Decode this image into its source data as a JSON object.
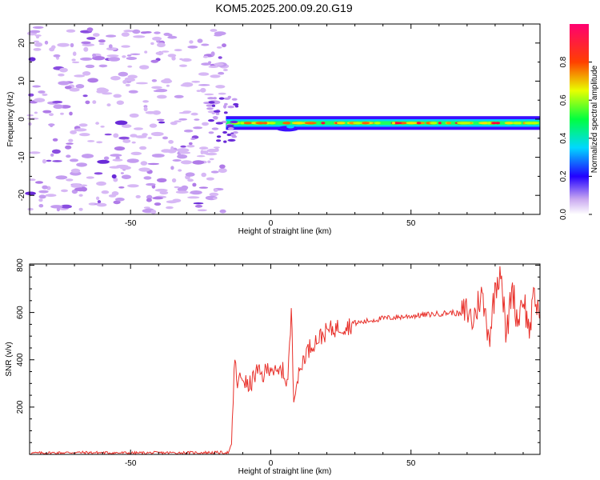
{
  "title": "KOM5.2025.200.09.20.G19",
  "chart_data": [
    {
      "type": "heatmap",
      "xlabel": "Height of straight line (km)",
      "ylabel": "Frequency (Hz)",
      "xlim": [
        -86,
        96
      ],
      "ylim": [
        -25,
        25
      ],
      "xticks": [
        -50,
        0,
        50
      ],
      "yticks": [
        -20,
        -10,
        0,
        10,
        20
      ],
      "colorbar": {
        "label": "Normalized spectral amplitude",
        "range": [
          0,
          1
        ],
        "ticks": [
          "0.0",
          "0.2",
          "0.4",
          "0.6",
          "0.8"
        ]
      },
      "description_values": {
        "noise_region_x": [
          -86,
          -16
        ],
        "signal_region_x": [
          -16,
          96
        ],
        "signal_center_frequency_hz": -1,
        "signal_peak_amplitude": 0.9
      },
      "grid": false
    },
    {
      "type": "line",
      "xlabel": "Height of straight line (km)",
      "ylabel": "SNR (v/v)",
      "xlim": [
        -86,
        96
      ],
      "ylim": [
        0,
        805
      ],
      "xticks": [
        -50,
        0,
        50
      ],
      "yticks": [
        200,
        400,
        600,
        800
      ],
      "series": [
        {
          "color": "#e8302a",
          "x": [
            -86,
            -70,
            -50,
            -30,
            -15,
            -14,
            -13.5,
            -13,
            -12,
            -10,
            -8,
            -5,
            -3,
            0,
            2,
            4,
            6,
            7,
            7.5,
            8,
            9,
            10,
            12,
            15,
            18,
            20,
            22,
            25,
            28,
            30,
            33,
            35,
            40,
            45,
            50,
            55,
            60,
            65,
            68,
            70,
            72,
            75,
            78,
            80,
            82,
            84,
            86,
            88,
            90,
            92,
            94,
            96
          ],
          "values": [
            5,
            8,
            6,
            7,
            8,
            40,
            190,
            410,
            300,
            330,
            280,
            350,
            330,
            380,
            330,
            360,
            300,
            520,
            630,
            250,
            300,
            330,
            420,
            470,
            500,
            520,
            530,
            540,
            545,
            555,
            560,
            565,
            575,
            580,
            585,
            590,
            595,
            600,
            590,
            610,
            560,
            680,
            500,
            700,
            800,
            480,
            720,
            560,
            680,
            520,
            660,
            600
          ]
        }
      ],
      "grid": false
    }
  ]
}
